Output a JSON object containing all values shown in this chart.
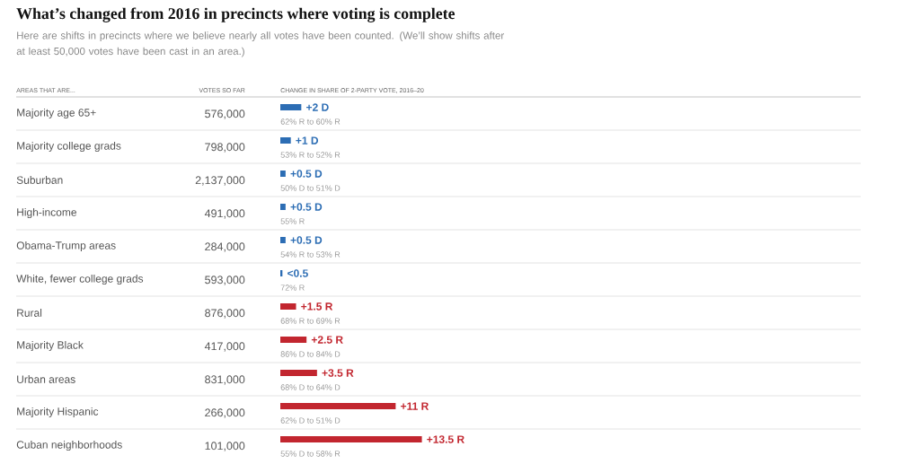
{
  "chart_data": {
    "type": "bar",
    "orientation": "horizontal",
    "title": "What’s changed from 2016 in precincts where voting is complete",
    "subtitle": "Here are shifts in precincts where we believe nearly all votes have been counted. (We’ll show shifts after at least 50,000 votes have been cast in an area.)",
    "ylabel": "AREAS THAT ARE...",
    "xlabel": "CHANGE IN SHARE OF 2-PARTY VOTE, 2016–20",
    "categories": [
      "Majority age 65+",
      "Majority college grads",
      "Suburban",
      "High-income",
      "Obama-Trump areas",
      "White, fewer college grads",
      "Rural",
      "Majority Black",
      "Urban areas",
      "Majority Hispanic",
      "Cuban neighborhoods"
    ],
    "values": [
      2,
      1,
      0.5,
      0.5,
      0.5,
      0.2,
      1.5,
      2.5,
      3.5,
      11,
      13.5
    ],
    "colors": [
      "#2c6db4",
      "#2c6db4",
      "#2c6db4",
      "#2c6db4",
      "#2c6db4",
      "#2c6db4",
      "#c2262f",
      "#c2262f",
      "#c2262f",
      "#c2262f",
      "#c2262f"
    ],
    "value_labels": [
      "+2 D",
      "+1 D",
      "+0.5 D",
      "+0.5 D",
      "+0.5 D",
      "<0.5",
      "+1.5 R",
      "+2.5 R",
      "+3.5 R",
      "+11 R",
      "+13.5 R"
    ],
    "grid": "y",
    "annotations": [
      "VOTES SO FAR",
      "576,000",
      "798,000",
      "2,137,000",
      "491,000",
      "284,000",
      "593,000",
      "876,000",
      "417,000",
      "831,000",
      "266,000",
      "101,000",
      "62% R to 60% R",
      "53% R to 52% R",
      "50% D to 51% D",
      "55% R",
      "54% R to 53% R",
      "72% R",
      "68% R to 69% R",
      "86% D to 84% D",
      "68% D to 64% D",
      "62% D to 51% D",
      "55% D to 58% R"
    ]
  }
}
